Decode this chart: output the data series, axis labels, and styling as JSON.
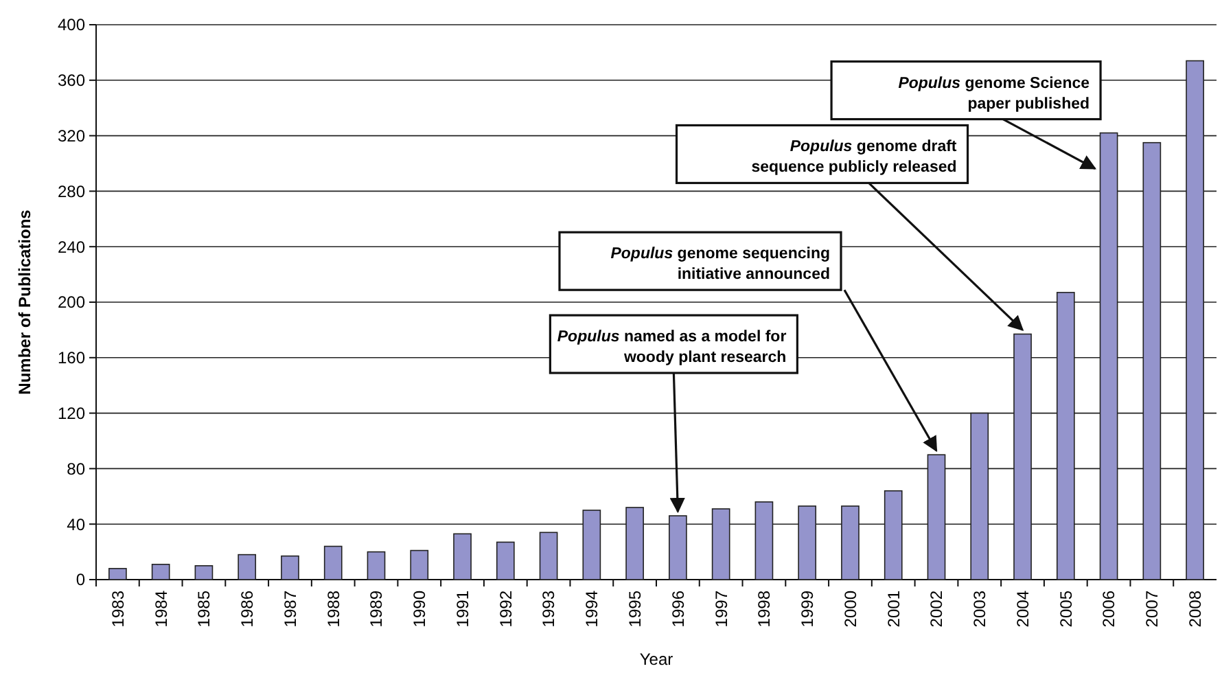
{
  "chart_data": {
    "type": "bar",
    "xlabel": "Year",
    "ylabel": "Number of Publications",
    "categories": [
      "1983",
      "1984",
      "1985",
      "1986",
      "1987",
      "1988",
      "1989",
      "1990",
      "1991",
      "1992",
      "1993",
      "1994",
      "1995",
      "1996",
      "1997",
      "1998",
      "1999",
      "2000",
      "2001",
      "2002",
      "2003",
      "2004",
      "2005",
      "2006",
      "2007",
      "2008"
    ],
    "values": [
      8,
      11,
      10,
      18,
      17,
      24,
      20,
      21,
      33,
      27,
      34,
      50,
      52,
      46,
      51,
      56,
      53,
      53,
      64,
      90,
      120,
      177,
      207,
      322,
      315,
      374
    ],
    "color": "#9494cc",
    "ylim": [
      0,
      400
    ],
    "yticks": [
      0,
      40,
      80,
      120,
      160,
      200,
      240,
      280,
      320,
      360,
      400
    ],
    "grid": "y",
    "annotations": [
      {
        "text": "Populus named as a model for\nwoody plant research",
        "x": "1996",
        "y": 46
      },
      {
        "text": "Populus genome sequencing\ninitiative announced",
        "x": "2002",
        "y": 90
      },
      {
        "text": "Populus genome draft\nsequence publicly released",
        "x": "2004",
        "y": 177
      },
      {
        "text": "Populus genome Science\npaper published",
        "x": "2006",
        "y": 322
      }
    ]
  }
}
